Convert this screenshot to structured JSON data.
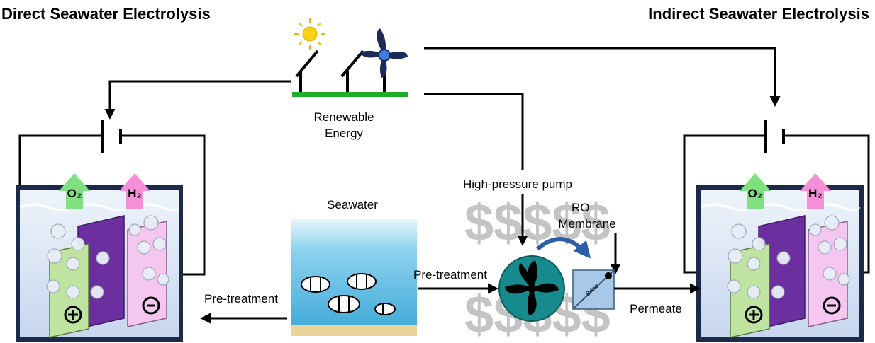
{
  "titles": {
    "direct": "Direct Seawater Electrolysis",
    "indirect": "Indirect Seawater Electrolysis"
  },
  "energy": {
    "label": [
      "Renewable",
      "Energy"
    ]
  },
  "seawater": {
    "label": "Seawater"
  },
  "pump": {
    "label": "High-pressure pump"
  },
  "membrane": {
    "label": [
      "RO",
      "Membrane"
    ],
    "brine": "Brine"
  },
  "flows": {
    "pretreatment_left": "Pre-treatment",
    "pretreatment_middle": "Pre-treatment",
    "permeate": "Permeate"
  },
  "cells": [
    {
      "o2": "O₂",
      "h2": "H₂"
    },
    {
      "o2": "O₂",
      "h2": "H₂"
    }
  ],
  "decor": {
    "dollars_top": "$$$$$",
    "dollars_bottom": "$$$$$"
  }
}
